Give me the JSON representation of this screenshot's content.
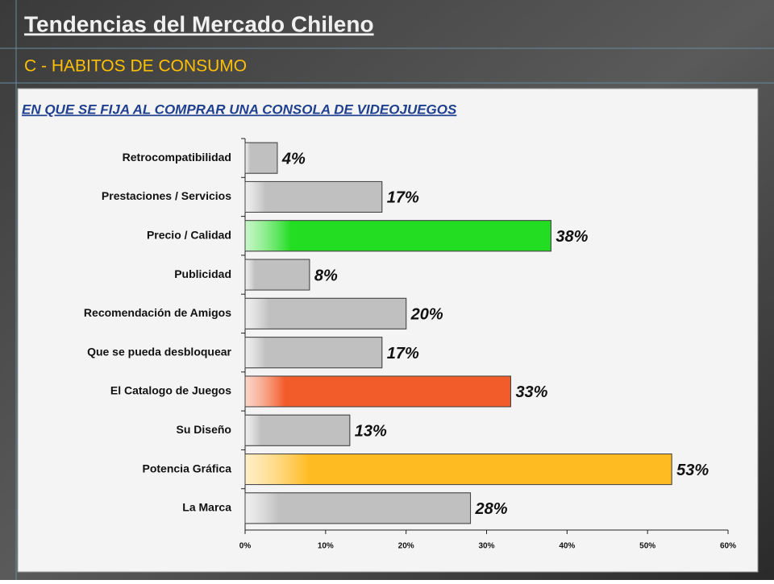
{
  "header": {
    "title": "Tendencias del Mercado Chileno",
    "subtitle": "C - HABITOS DE CONSUMO"
  },
  "chart_data": {
    "type": "bar",
    "orientation": "horizontal",
    "title": "EN QUE SE FIJA AL COMPRAR UNA CONSOLA DE VIDEOJUEGOS",
    "categories": [
      "Retrocompatibilidad",
      "Prestaciones / Servicios",
      "Precio / Calidad",
      "Publicidad",
      "Recomendación de Amigos",
      "Que se pueda desbloquear",
      "El Catalogo de Juegos",
      "Su Diseño",
      "Potencia Gráfica",
      "La Marca"
    ],
    "values": [
      4,
      17,
      38,
      8,
      20,
      17,
      33,
      13,
      53,
      28
    ],
    "value_labels": [
      "4%",
      "17%",
      "38%",
      "8%",
      "20%",
      "17%",
      "33%",
      "13%",
      "53%",
      "28%"
    ],
    "colors": [
      "#c0c0c0",
      "#c0c0c0",
      "#22dd22",
      "#c0c0c0",
      "#c0c0c0",
      "#c0c0c0",
      "#f25c2a",
      "#c0c0c0",
      "#ffbb22",
      "#c0c0c0"
    ],
    "xlim": [
      0,
      60
    ],
    "xticks": [
      {
        "value": 0,
        "label": "0%"
      },
      {
        "value": 10,
        "label": "10%"
      },
      {
        "value": 20,
        "label": "20%"
      },
      {
        "value": 30,
        "label": "30%"
      },
      {
        "value": 40,
        "label": "40%"
      },
      {
        "value": 50,
        "label": "50%"
      },
      {
        "value": 60,
        "label": "60%"
      }
    ],
    "grid": false
  }
}
